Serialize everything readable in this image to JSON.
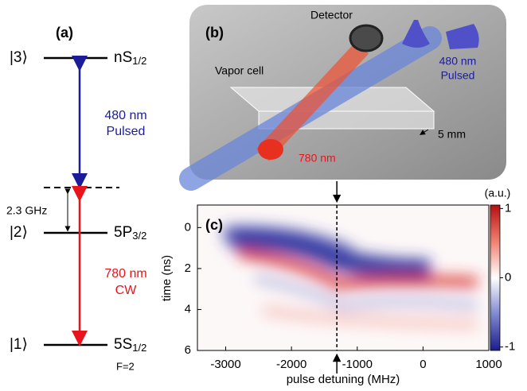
{
  "panel_a": {
    "label": "(a)",
    "levels": [
      {
        "ket": "|3⟩",
        "name": "nS",
        "sub": "1/2"
      },
      {
        "ket": "|2⟩",
        "name": "5P",
        "sub": "3/2"
      },
      {
        "ket": "|1⟩",
        "name": "5S",
        "sub": "1/2",
        "note": "F=2"
      }
    ],
    "detuning": "2.3 GHz",
    "upper_beam": [
      "480 nm",
      "Pulsed"
    ],
    "lower_beam": [
      "780 nm",
      "CW"
    ]
  },
  "panel_b": {
    "label": "(b)",
    "detector": "Detector",
    "cell": "Vapor cell",
    "beam_480": [
      "480 nm",
      "Pulsed"
    ],
    "beam_780": "780 nm",
    "size": "5 mm"
  },
  "panel_c": {
    "label": "(c)",
    "x_label": "pulse detuning (MHz)",
    "y_label": "time (ns)",
    "xlim": [
      -3430,
      1000
    ],
    "xticks": [
      -3000,
      -2000,
      -1000,
      0,
      1000
    ],
    "ylim": [
      -1.1,
      6
    ],
    "yticks": [
      0,
      2,
      4,
      6
    ],
    "marker_x": -1310,
    "colorbar": {
      "unit": "(a.u.)",
      "lim": [
        -1.05,
        1.05
      ],
      "ticks": [
        1,
        0,
        -1
      ]
    }
  }
}
